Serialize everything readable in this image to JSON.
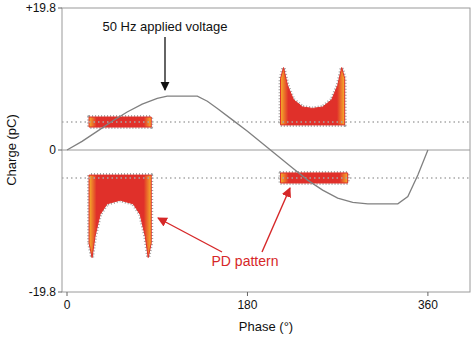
{
  "chart_data": {
    "type": "line",
    "x_label": "Phase (°)",
    "y_label": "Charge (pC)",
    "xlim": [
      -5,
      402
    ],
    "ylim": [
      -19.8,
      19.8
    ],
    "xticks": [
      0,
      180,
      360
    ],
    "yticks": [
      {
        "value": 19.8,
        "label": "+19.8"
      },
      0,
      -19.8
    ],
    "grid": false,
    "annotations": [
      {
        "text": "50 Hz applied voltage",
        "color": "#111111"
      },
      {
        "text": "PD pattern",
        "color": "#d62728"
      }
    ],
    "series": [
      {
        "type": "area",
        "color": "#e0302a",
        "x": [
          22,
          25,
          28,
          33,
          40,
          53,
          66,
          73,
          78,
          81,
          84
        ],
        "values": [
          -13,
          -15,
          -12,
          -9,
          -7.5,
          -7,
          -7.5,
          -9,
          -12,
          -15,
          -13
        ],
        "base": [
          -3.5,
          -3.5,
          -3.5,
          -3.5,
          -3.5,
          -3.5,
          -3.5,
          -3.5,
          -3.5,
          -3.5,
          -3.5
        ]
      },
      {
        "type": "area",
        "color": "#e0302a",
        "x": [
          213,
          216,
          220,
          226,
          235,
          245,
          255,
          264,
          270,
          274,
          277
        ],
        "values": [
          10,
          11.5,
          9,
          7,
          6,
          5.8,
          6,
          7,
          9,
          11.5,
          10
        ],
        "base": [
          3.5,
          3.5,
          3.5,
          3.5,
          3.5,
          3.5,
          3.5,
          3.5,
          3.5,
          3.5,
          3.5
        ]
      },
      {
        "type": "area",
        "color": "#e0302a",
        "x": [
          22,
          84
        ],
        "values": [
          4.6,
          4.6
        ],
        "base": [
          3.2,
          3.2
        ]
      },
      {
        "type": "area",
        "color": "#e0302a",
        "x": [
          213,
          280
        ],
        "values": [
          -4.6,
          -4.6
        ],
        "base": [
          -3.2,
          -3.2
        ]
      },
      {
        "type": "line",
        "color": "#a8a8a8",
        "line_style": "dotted",
        "x": [
          -5,
          402
        ],
        "values": [
          3.9,
          3.9
        ]
      },
      {
        "type": "line",
        "color": "#a8a8a8",
        "line_style": "dotted",
        "x": [
          -5,
          402
        ],
        "values": [
          -3.9,
          -3.9
        ]
      },
      {
        "type": "line",
        "color": "#808080",
        "line_style": "solid",
        "x": [
          0,
          15,
          30,
          45,
          60,
          75,
          90,
          100,
          130,
          140,
          150,
          165,
          180,
          195,
          210,
          225,
          240,
          255,
          270,
          285,
          300,
          330,
          340,
          350,
          360
        ],
        "values": [
          0,
          1.2,
          2.6,
          4.0,
          5.3,
          6.4,
          7.2,
          7.5,
          7.5,
          6.8,
          5.8,
          4.2,
          2.6,
          0.9,
          -0.8,
          -2.5,
          -4.2,
          -5.6,
          -6.7,
          -7.3,
          -7.5,
          -7.5,
          -6.5,
          -3.5,
          0
        ]
      }
    ]
  }
}
